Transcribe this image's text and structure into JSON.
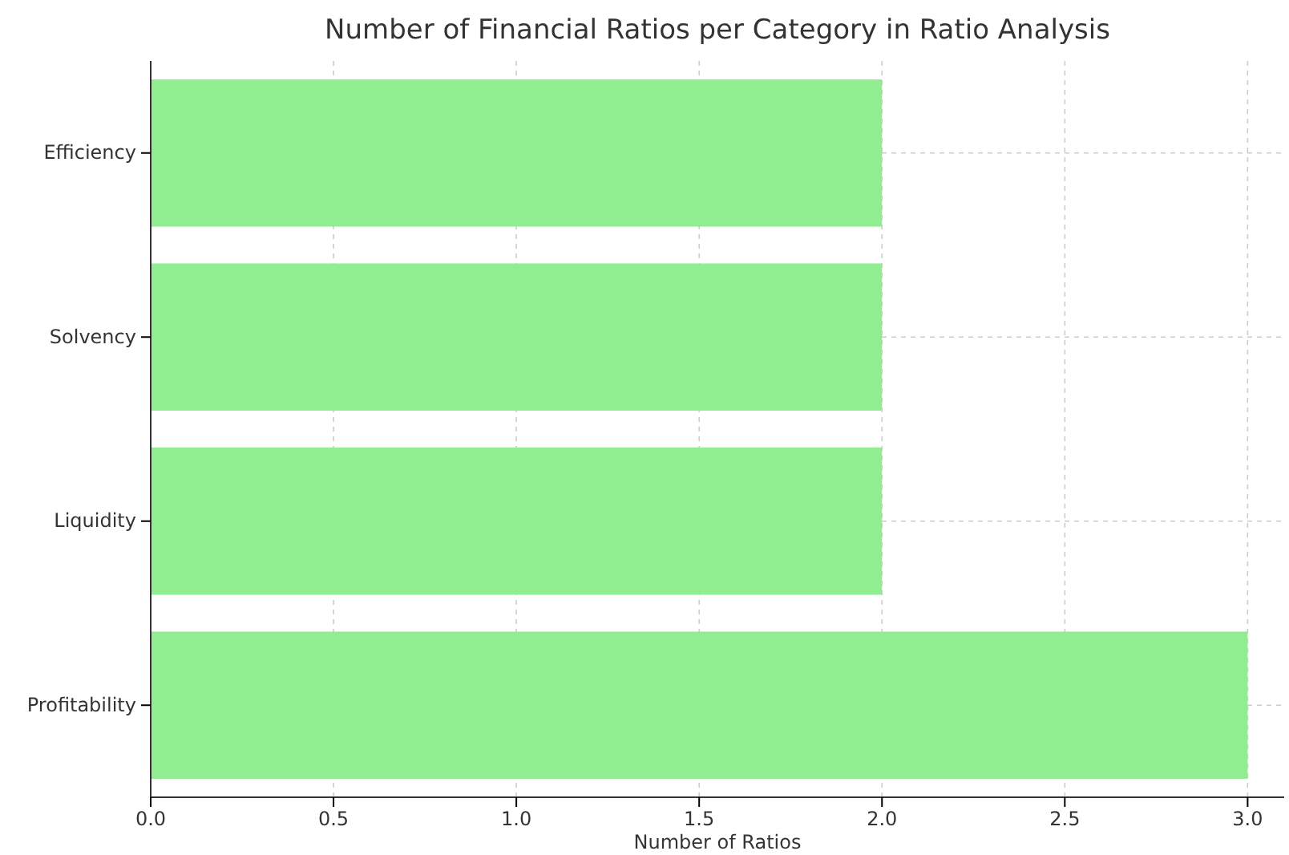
{
  "chart_data": {
    "type": "bar",
    "orientation": "horizontal",
    "title": "Number of Financial Ratios per Category in Ratio Analysis",
    "xlabel": "Number of Ratios",
    "categories": [
      "Efficiency",
      "Solvency",
      "Liquidity",
      "Profitability"
    ],
    "values": [
      2,
      2,
      2,
      3
    ],
    "color": "#90ee90",
    "xlim": [
      0,
      3.1
    ],
    "xticks": [
      {
        "value": 0,
        "label": "0.0"
      },
      {
        "value": 0.5,
        "label": "0.5"
      },
      {
        "value": 1,
        "label": "1.0"
      },
      {
        "value": 1.5,
        "label": "1.5"
      },
      {
        "value": 2,
        "label": "2.0"
      },
      {
        "value": 2.5,
        "label": "2.5"
      },
      {
        "value": 3,
        "label": "3.0"
      }
    ],
    "grid": true
  }
}
